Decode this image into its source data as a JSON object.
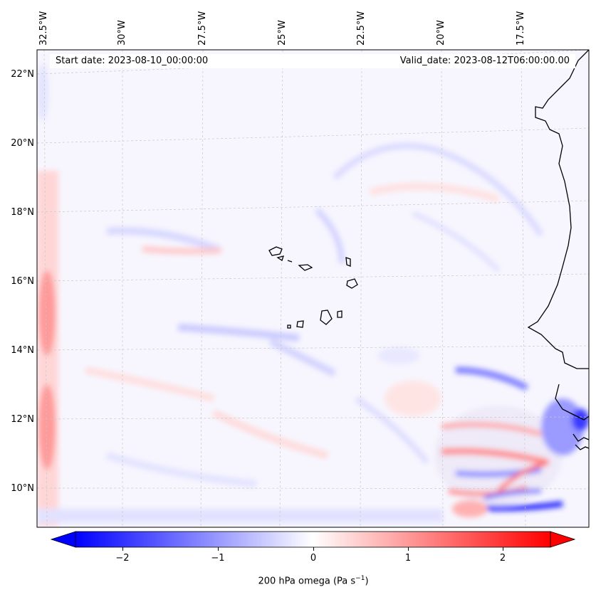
{
  "map": {
    "start_date": "Start date: 2023-08-10_00:00:00",
    "valid_date": "Valid_date: 2023-08-12T06:00:00.00",
    "lon_labels": [
      "32.5°W",
      "30°W",
      "27.5°W",
      "25°W",
      "22.5°W",
      "20°W",
      "17.5°W"
    ],
    "lat_labels": [
      "22°N",
      "20°N",
      "18°N",
      "16°N",
      "14°N",
      "12°N",
      "10°N"
    ],
    "gridlines": true,
    "colormap": "bwr",
    "features": [
      "Cape Verde islands coastline",
      "West African coastline"
    ]
  },
  "colorbar": {
    "ticks": [
      "−2",
      "−1",
      "0",
      "1",
      "2"
    ],
    "tick_values": [
      -2,
      -1,
      0,
      1,
      2
    ],
    "range": [
      -2.5,
      2.5
    ],
    "extend": "both",
    "label_main": "200 hPa omega (Pa s",
    "label_sup": "−1",
    "label_close": ")",
    "color_min": "#0000ff",
    "color_mid": "#ffffff",
    "color_max": "#ff0000"
  }
}
